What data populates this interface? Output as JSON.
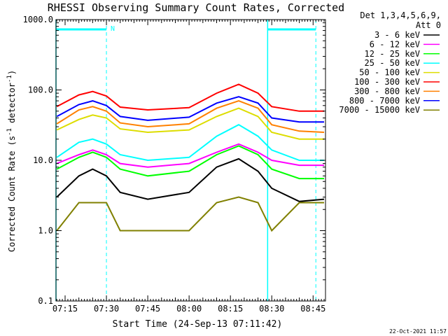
{
  "chart_data": {
    "type": "line",
    "title": "RHESSI Observing Summary Count Rates, Corrected",
    "xlabel": "Start Time (24-Sep-13 07:11:42)",
    "ylabel_parts": [
      "Corrected Count Rate (s",
      "-1",
      " detector",
      "-1",
      ")"
    ],
    "yscale": "log",
    "ylim": [
      0.1,
      1000
    ],
    "xlim": [
      "07:11:42",
      "08:49:30"
    ],
    "y_ticks": [
      "0.1",
      "1.0",
      "10.0",
      "100.0",
      "1000.0"
    ],
    "x_ticks": [
      "07:15",
      "07:30",
      "07:45",
      "08:00",
      "08:15",
      "08:30",
      "08:45"
    ],
    "legend_title_lines": [
      "Det 1,3,4,5,6,9,",
      "Att 0"
    ],
    "legend_placement": "right",
    "footer_timestamp": "22-Oct-2021 11:57",
    "annotations": [
      {
        "text": "N",
        "time": "07:30",
        "color": "#00ffff"
      }
    ],
    "night_intervals": [
      {
        "start": "07:11:42",
        "end": "07:30:00"
      },
      {
        "start": "08:28:30",
        "end": "08:46:00"
      }
    ],
    "sample_times": [
      "07:12",
      "07:20",
      "07:25",
      "07:30",
      "07:35",
      "07:45",
      "08:00",
      "08:10",
      "08:18",
      "08:25",
      "08:30",
      "08:40",
      "08:49"
    ],
    "series": [
      {
        "name": "3 - 6 keV",
        "color": "#000000",
        "values": [
          3.0,
          6.0,
          7.5,
          6.0,
          3.5,
          2.8,
          3.5,
          8.0,
          10.5,
          7.0,
          4.0,
          2.6,
          2.8
        ]
      },
      {
        "name": "6 - 12 keV",
        "color": "#ff00ff",
        "values": [
          9.0,
          12.0,
          14.0,
          12.0,
          9.0,
          8.0,
          9.0,
          13.0,
          17.0,
          13.0,
          10.0,
          8.5,
          8.5
        ]
      },
      {
        "name": "12 - 25 keV",
        "color": "#00ff00",
        "values": [
          7.5,
          11.0,
          13.0,
          11.0,
          7.5,
          6.0,
          7.0,
          12.0,
          16.0,
          12.0,
          7.5,
          5.5,
          5.5
        ]
      },
      {
        "name": "25 - 50 keV",
        "color": "#00ffff",
        "values": [
          11.0,
          18.0,
          20.0,
          17.0,
          12.0,
          10.0,
          11.0,
          22.0,
          32.0,
          22.0,
          14.0,
          10.0,
          10.0
        ]
      },
      {
        "name": "50 - 100 keV",
        "color": "#dddd00",
        "values": [
          27.0,
          38.0,
          44.0,
          40.0,
          28.0,
          25.0,
          27.0,
          42.0,
          55.0,
          42.0,
          25.0,
          20.0,
          20.0
        ]
      },
      {
        "name": "100 - 300 keV",
        "color": "#ff0000",
        "values": [
          58.0,
          85.0,
          95.0,
          82.0,
          57.0,
          52.0,
          56.0,
          90.0,
          120.0,
          90.0,
          58.0,
          50.0,
          50.0
        ]
      },
      {
        "name": "300 - 800 keV",
        "color": "#ff8000",
        "values": [
          33.0,
          52.0,
          58.0,
          50.0,
          34.0,
          30.0,
          33.0,
          55.0,
          70.0,
          55.0,
          32.0,
          26.0,
          25.0
        ]
      },
      {
        "name": "800 - 7000 keV",
        "color": "#0000ff",
        "values": [
          42.0,
          62.0,
          70.0,
          60.0,
          42.0,
          37.0,
          41.0,
          65.0,
          80.0,
          65.0,
          40.0,
          35.0,
          35.0
        ]
      },
      {
        "name": "7000 - 15000 keV",
        "color": "#808000",
        "values": [
          1.0,
          2.5,
          2.5,
          2.5,
          1.0,
          1.0,
          1.0,
          2.5,
          3.0,
          2.5,
          1.0,
          2.5,
          2.5
        ]
      }
    ]
  }
}
